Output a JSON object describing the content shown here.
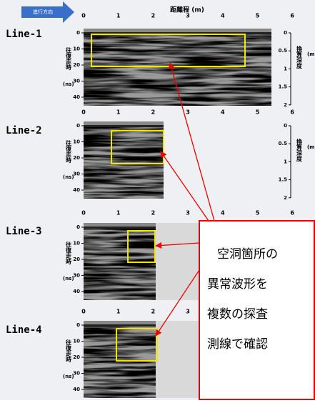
{
  "header": {
    "direction": "進行方向",
    "x_axis_label": "距離程 (m)"
  },
  "axis": {
    "x_ticks": [
      "0",
      "1",
      "2",
      "3",
      "4",
      "5",
      "6"
    ],
    "y_ticks": [
      "0",
      "10",
      "20",
      "30",
      "40"
    ],
    "y_label": "往復走時",
    "y_unit": "(ns)",
    "depth_ticks": [
      "0",
      "0.5",
      "1",
      "1.5",
      "2"
    ],
    "depth_label": "換算深度",
    "depth_unit": "(m)"
  },
  "panels": [
    {
      "label": "Line-1"
    },
    {
      "label": "Line-2"
    },
    {
      "label": "Line-3"
    },
    {
      "label": "Line-4"
    }
  ],
  "annotation": {
    "lines": [
      "空洞箇所の",
      "異常波形を",
      "複数の探査",
      "測線で確認"
    ]
  }
}
